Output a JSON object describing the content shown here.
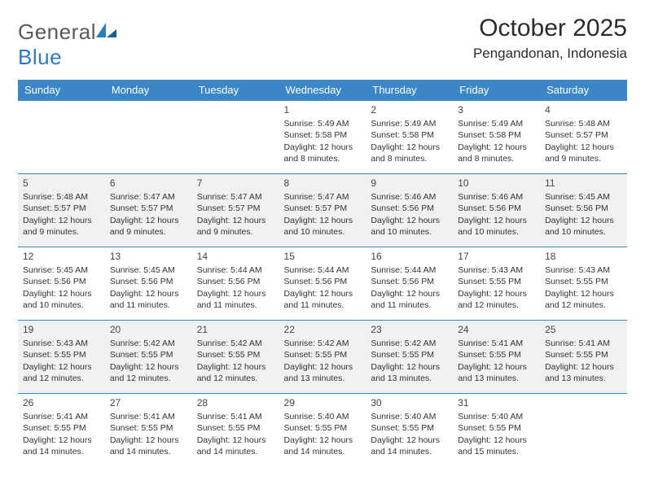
{
  "brand": {
    "general": "General",
    "blue": "Blue"
  },
  "header": {
    "month": "October 2025",
    "location": "Pengandonan, Indonesia"
  },
  "columns": [
    "Sunday",
    "Monday",
    "Tuesday",
    "Wednesday",
    "Thursday",
    "Friday",
    "Saturday"
  ],
  "colors": {
    "header_bg": "#3b86c6",
    "alt_row": "#f1f1f1",
    "rule": "#3b86c6"
  },
  "weeks": [
    {
      "alt": false,
      "days": [
        {
          "n": "",
          "sr": "",
          "ss": "",
          "dl": ""
        },
        {
          "n": "",
          "sr": "",
          "ss": "",
          "dl": ""
        },
        {
          "n": "",
          "sr": "",
          "ss": "",
          "dl": ""
        },
        {
          "n": "1",
          "sr": "Sunrise: 5:49 AM",
          "ss": "Sunset: 5:58 PM",
          "dl": "Daylight: 12 hours and 8 minutes."
        },
        {
          "n": "2",
          "sr": "Sunrise: 5:49 AM",
          "ss": "Sunset: 5:58 PM",
          "dl": "Daylight: 12 hours and 8 minutes."
        },
        {
          "n": "3",
          "sr": "Sunrise: 5:49 AM",
          "ss": "Sunset: 5:58 PM",
          "dl": "Daylight: 12 hours and 8 minutes."
        },
        {
          "n": "4",
          "sr": "Sunrise: 5:48 AM",
          "ss": "Sunset: 5:57 PM",
          "dl": "Daylight: 12 hours and 9 minutes."
        }
      ]
    },
    {
      "alt": true,
      "days": [
        {
          "n": "5",
          "sr": "Sunrise: 5:48 AM",
          "ss": "Sunset: 5:57 PM",
          "dl": "Daylight: 12 hours and 9 minutes."
        },
        {
          "n": "6",
          "sr": "Sunrise: 5:47 AM",
          "ss": "Sunset: 5:57 PM",
          "dl": "Daylight: 12 hours and 9 minutes."
        },
        {
          "n": "7",
          "sr": "Sunrise: 5:47 AM",
          "ss": "Sunset: 5:57 PM",
          "dl": "Daylight: 12 hours and 9 minutes."
        },
        {
          "n": "8",
          "sr": "Sunrise: 5:47 AM",
          "ss": "Sunset: 5:57 PM",
          "dl": "Daylight: 12 hours and 10 minutes."
        },
        {
          "n": "9",
          "sr": "Sunrise: 5:46 AM",
          "ss": "Sunset: 5:56 PM",
          "dl": "Daylight: 12 hours and 10 minutes."
        },
        {
          "n": "10",
          "sr": "Sunrise: 5:46 AM",
          "ss": "Sunset: 5:56 PM",
          "dl": "Daylight: 12 hours and 10 minutes."
        },
        {
          "n": "11",
          "sr": "Sunrise: 5:45 AM",
          "ss": "Sunset: 5:56 PM",
          "dl": "Daylight: 12 hours and 10 minutes."
        }
      ]
    },
    {
      "alt": false,
      "days": [
        {
          "n": "12",
          "sr": "Sunrise: 5:45 AM",
          "ss": "Sunset: 5:56 PM",
          "dl": "Daylight: 12 hours and 10 minutes."
        },
        {
          "n": "13",
          "sr": "Sunrise: 5:45 AM",
          "ss": "Sunset: 5:56 PM",
          "dl": "Daylight: 12 hours and 11 minutes."
        },
        {
          "n": "14",
          "sr": "Sunrise: 5:44 AM",
          "ss": "Sunset: 5:56 PM",
          "dl": "Daylight: 12 hours and 11 minutes."
        },
        {
          "n": "15",
          "sr": "Sunrise: 5:44 AM",
          "ss": "Sunset: 5:56 PM",
          "dl": "Daylight: 12 hours and 11 minutes."
        },
        {
          "n": "16",
          "sr": "Sunrise: 5:44 AM",
          "ss": "Sunset: 5:56 PM",
          "dl": "Daylight: 12 hours and 11 minutes."
        },
        {
          "n": "17",
          "sr": "Sunrise: 5:43 AM",
          "ss": "Sunset: 5:55 PM",
          "dl": "Daylight: 12 hours and 12 minutes."
        },
        {
          "n": "18",
          "sr": "Sunrise: 5:43 AM",
          "ss": "Sunset: 5:55 PM",
          "dl": "Daylight: 12 hours and 12 minutes."
        }
      ]
    },
    {
      "alt": true,
      "days": [
        {
          "n": "19",
          "sr": "Sunrise: 5:43 AM",
          "ss": "Sunset: 5:55 PM",
          "dl": "Daylight: 12 hours and 12 minutes."
        },
        {
          "n": "20",
          "sr": "Sunrise: 5:42 AM",
          "ss": "Sunset: 5:55 PM",
          "dl": "Daylight: 12 hours and 12 minutes."
        },
        {
          "n": "21",
          "sr": "Sunrise: 5:42 AM",
          "ss": "Sunset: 5:55 PM",
          "dl": "Daylight: 12 hours and 12 minutes."
        },
        {
          "n": "22",
          "sr": "Sunrise: 5:42 AM",
          "ss": "Sunset: 5:55 PM",
          "dl": "Daylight: 12 hours and 13 minutes."
        },
        {
          "n": "23",
          "sr": "Sunrise: 5:42 AM",
          "ss": "Sunset: 5:55 PM",
          "dl": "Daylight: 12 hours and 13 minutes."
        },
        {
          "n": "24",
          "sr": "Sunrise: 5:41 AM",
          "ss": "Sunset: 5:55 PM",
          "dl": "Daylight: 12 hours and 13 minutes."
        },
        {
          "n": "25",
          "sr": "Sunrise: 5:41 AM",
          "ss": "Sunset: 5:55 PM",
          "dl": "Daylight: 12 hours and 13 minutes."
        }
      ]
    },
    {
      "alt": false,
      "days": [
        {
          "n": "26",
          "sr": "Sunrise: 5:41 AM",
          "ss": "Sunset: 5:55 PM",
          "dl": "Daylight: 12 hours and 14 minutes."
        },
        {
          "n": "27",
          "sr": "Sunrise: 5:41 AM",
          "ss": "Sunset: 5:55 PM",
          "dl": "Daylight: 12 hours and 14 minutes."
        },
        {
          "n": "28",
          "sr": "Sunrise: 5:41 AM",
          "ss": "Sunset: 5:55 PM",
          "dl": "Daylight: 12 hours and 14 minutes."
        },
        {
          "n": "29",
          "sr": "Sunrise: 5:40 AM",
          "ss": "Sunset: 5:55 PM",
          "dl": "Daylight: 12 hours and 14 minutes."
        },
        {
          "n": "30",
          "sr": "Sunrise: 5:40 AM",
          "ss": "Sunset: 5:55 PM",
          "dl": "Daylight: 12 hours and 14 minutes."
        },
        {
          "n": "31",
          "sr": "Sunrise: 5:40 AM",
          "ss": "Sunset: 5:55 PM",
          "dl": "Daylight: 12 hours and 15 minutes."
        },
        {
          "n": "",
          "sr": "",
          "ss": "",
          "dl": ""
        }
      ]
    }
  ]
}
